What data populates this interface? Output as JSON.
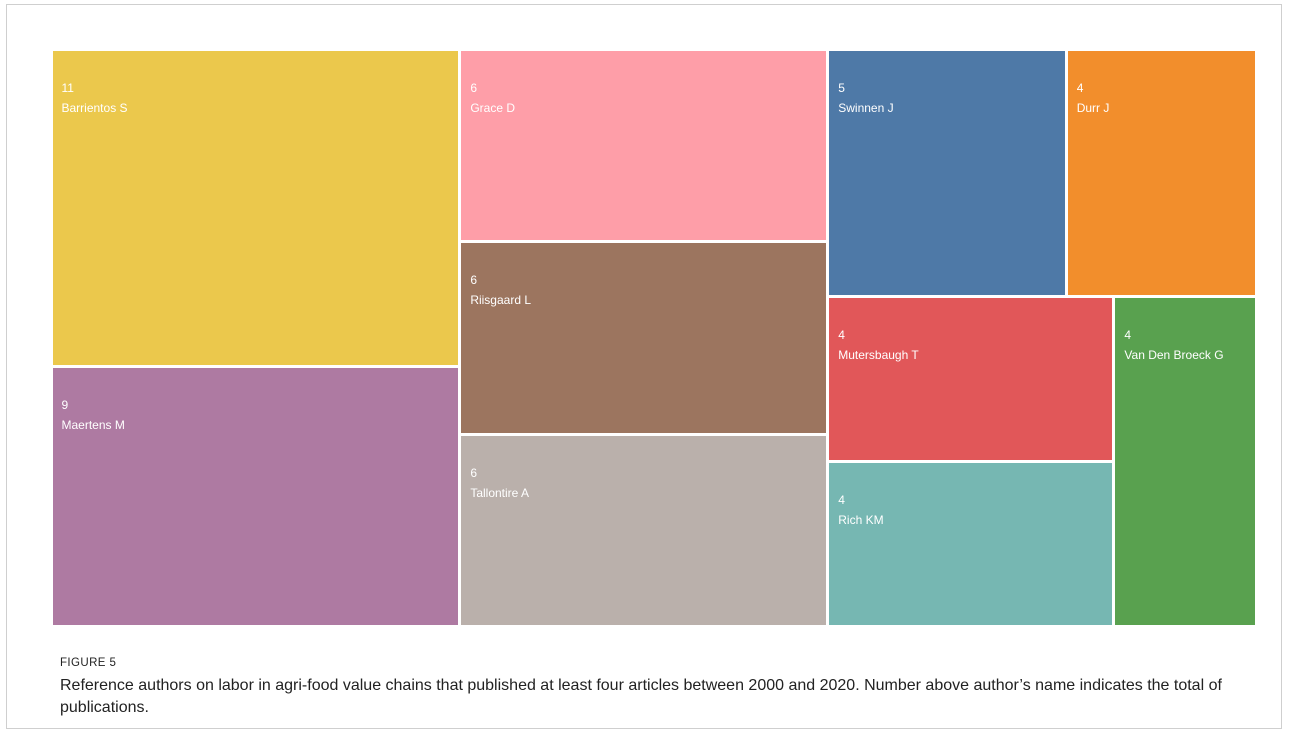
{
  "figure": {
    "label": "FIGURE 5",
    "caption": "Reference authors on labor in agri-food value chains that published at least four articles between 2000 and 2020. Number above author’s name indicates the total of publications."
  },
  "chart_data": {
    "type": "treemap",
    "title": "",
    "items": [
      {
        "name": "Barrientos S",
        "value": 11,
        "color": "#ebc84c"
      },
      {
        "name": "Maertens M",
        "value": 9,
        "color": "#ae7aa2"
      },
      {
        "name": "Grace D",
        "value": 6,
        "color": "#fe9ea8"
      },
      {
        "name": "Riisgaard L",
        "value": 6,
        "color": "#9c755f"
      },
      {
        "name": "Tallontire A",
        "value": 6,
        "color": "#bab0ab"
      },
      {
        "name": "Swinnen J",
        "value": 5,
        "color": "#4e79a7"
      },
      {
        "name": "Durr J",
        "value": 4,
        "color": "#f28e2c"
      },
      {
        "name": "Mutersbaugh T",
        "value": 4,
        "color": "#e15759"
      },
      {
        "name": "Rich KM",
        "value": 4,
        "color": "#76b7b2"
      },
      {
        "name": "Van Den Broeck G",
        "value": 4,
        "color": "#59a14f"
      }
    ]
  }
}
